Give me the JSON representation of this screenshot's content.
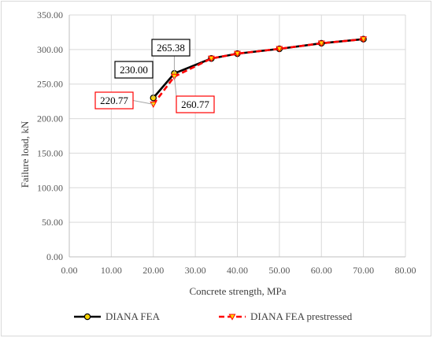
{
  "chart_data": {
    "type": "line",
    "title": "",
    "xlabel": "Concrete strength, MPa",
    "ylabel": "Failure load, kN",
    "xlim": [
      0,
      80
    ],
    "ylim": [
      0,
      350
    ],
    "xticks": [
      "0.00",
      "10.00",
      "20.00",
      "30.00",
      "40.00",
      "50.00",
      "60.00",
      "70.00",
      "80.00"
    ],
    "yticks": [
      "0.00",
      "50.00",
      "100.00",
      "150.00",
      "200.00",
      "250.00",
      "300.00",
      "350.00"
    ],
    "grid": true,
    "legend_position": "bottom",
    "series": [
      {
        "name": "DIANA FEA",
        "color": "#000000",
        "marker_fill": "#ffd700",
        "line_style": "solid",
        "x": [
          20,
          25,
          33.8,
          40,
          50,
          60,
          70
        ],
        "y": [
          230.0,
          265.38,
          287,
          294,
          301,
          309,
          315
        ]
      },
      {
        "name": "DIANA FEA prestressed",
        "color": "#ff0000",
        "marker_fill": "#ffd700",
        "line_style": "dashed",
        "x": [
          20,
          25,
          33.8,
          40,
          50,
          60,
          70
        ],
        "y": [
          220.77,
          260.77,
          287,
          294,
          301,
          309,
          315
        ]
      }
    ],
    "annotations": [
      {
        "text": "230.00",
        "series": 0,
        "point": 0,
        "style": "black-box"
      },
      {
        "text": "265.38",
        "series": 0,
        "point": 1,
        "style": "black-box"
      },
      {
        "text": "220.77",
        "series": 1,
        "point": 0,
        "style": "red-box"
      },
      {
        "text": "260.77",
        "series": 1,
        "point": 1,
        "style": "red-box"
      }
    ]
  }
}
